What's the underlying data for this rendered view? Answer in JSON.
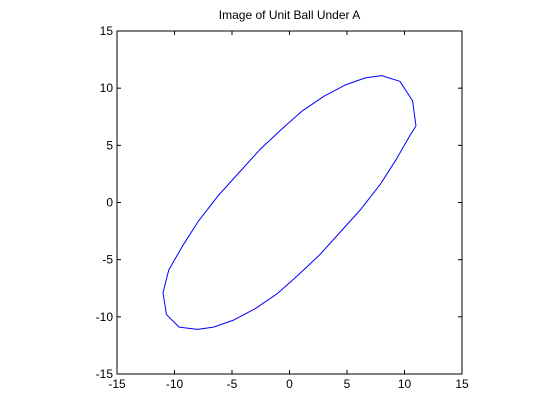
{
  "chart_data": {
    "type": "line",
    "title": "Image of Unit Ball Under A",
    "xlabel": "",
    "ylabel": "",
    "xlim": [
      -15,
      15
    ],
    "ylim": [
      -15,
      15
    ],
    "xticks": [
      -15,
      -10,
      -5,
      0,
      5,
      10,
      15
    ],
    "yticks": [
      -15,
      -10,
      -5,
      0,
      5,
      10,
      15
    ],
    "xtick_labels": [
      "-15",
      "-10",
      "-5",
      "0",
      "5",
      "10",
      "15"
    ],
    "ytick_labels": [
      "-15",
      "-10",
      "-5",
      "0",
      "5",
      "10",
      "15"
    ],
    "grid": false,
    "legend": "none",
    "series": [
      {
        "color": "#0000ff",
        "shape": "closed curve",
        "x": [
          11.0,
          10.7,
          9.6,
          8.0,
          6.6,
          4.9,
          3.0,
          1.1,
          -0.7,
          -2.6,
          -4.4,
          -6.2,
          -7.9,
          -9.3,
          -10.5,
          -11.0,
          -10.7,
          -9.6,
          -8.0,
          -6.6,
          -4.9,
          -3.0,
          -1.1,
          0.7,
          2.6,
          4.4,
          6.2,
          7.9,
          9.3,
          10.5,
          11.0
        ],
        "y": [
          6.7,
          8.9,
          10.6,
          11.1,
          10.9,
          10.3,
          9.3,
          8.0,
          6.4,
          4.6,
          2.6,
          0.6,
          -1.6,
          -3.8,
          -5.9,
          -7.9,
          -9.8,
          -10.9,
          -11.1,
          -10.9,
          -10.3,
          -9.3,
          -8.0,
          -6.4,
          -4.6,
          -2.6,
          -0.6,
          1.6,
          3.8,
          5.9,
          6.7
        ]
      }
    ]
  }
}
